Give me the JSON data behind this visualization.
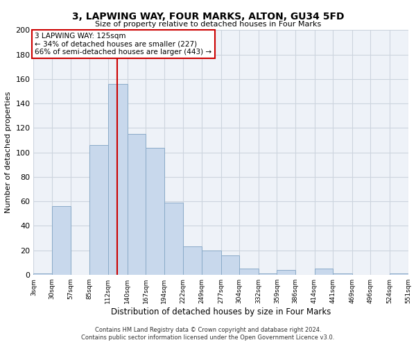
{
  "title": "3, LAPWING WAY, FOUR MARKS, ALTON, GU34 5FD",
  "subtitle": "Size of property relative to detached houses in Four Marks",
  "xlabel": "Distribution of detached houses by size in Four Marks",
  "ylabel": "Number of detached properties",
  "bar_color": "#c8d8ec",
  "bar_edge_color": "#8aaac8",
  "bg_color": "#eef2f8",
  "grid_color": "#ccd4de",
  "vline_x": 125,
  "vline_color": "#cc0000",
  "annotation_text": "3 LAPWING WAY: 125sqm\n← 34% of detached houses are smaller (227)\n66% of semi-detached houses are larger (443) →",
  "annotation_box_color": "#ffffff",
  "annotation_border_color": "#cc0000",
  "bin_edges": [
    3,
    30,
    57,
    85,
    112,
    140,
    167,
    194,
    222,
    249,
    277,
    304,
    332,
    359,
    386,
    414,
    441,
    469,
    496,
    524,
    551
  ],
  "bin_heights": [
    1,
    56,
    0,
    106,
    156,
    115,
    104,
    59,
    23,
    20,
    16,
    5,
    1,
    4,
    0,
    5,
    1,
    0,
    0,
    1
  ],
  "ylim": [
    0,
    200
  ],
  "yticks": [
    0,
    20,
    40,
    60,
    80,
    100,
    120,
    140,
    160,
    180,
    200
  ],
  "xtick_labels": [
    "3sqm",
    "30sqm",
    "57sqm",
    "85sqm",
    "112sqm",
    "140sqm",
    "167sqm",
    "194sqm",
    "222sqm",
    "249sqm",
    "277sqm",
    "304sqm",
    "332sqm",
    "359sqm",
    "386sqm",
    "414sqm",
    "441sqm",
    "469sqm",
    "496sqm",
    "524sqm",
    "551sqm"
  ],
  "footnote1": "Contains HM Land Registry data © Crown copyright and database right 2024.",
  "footnote2": "Contains public sector information licensed under the Open Government Licence v3.0."
}
